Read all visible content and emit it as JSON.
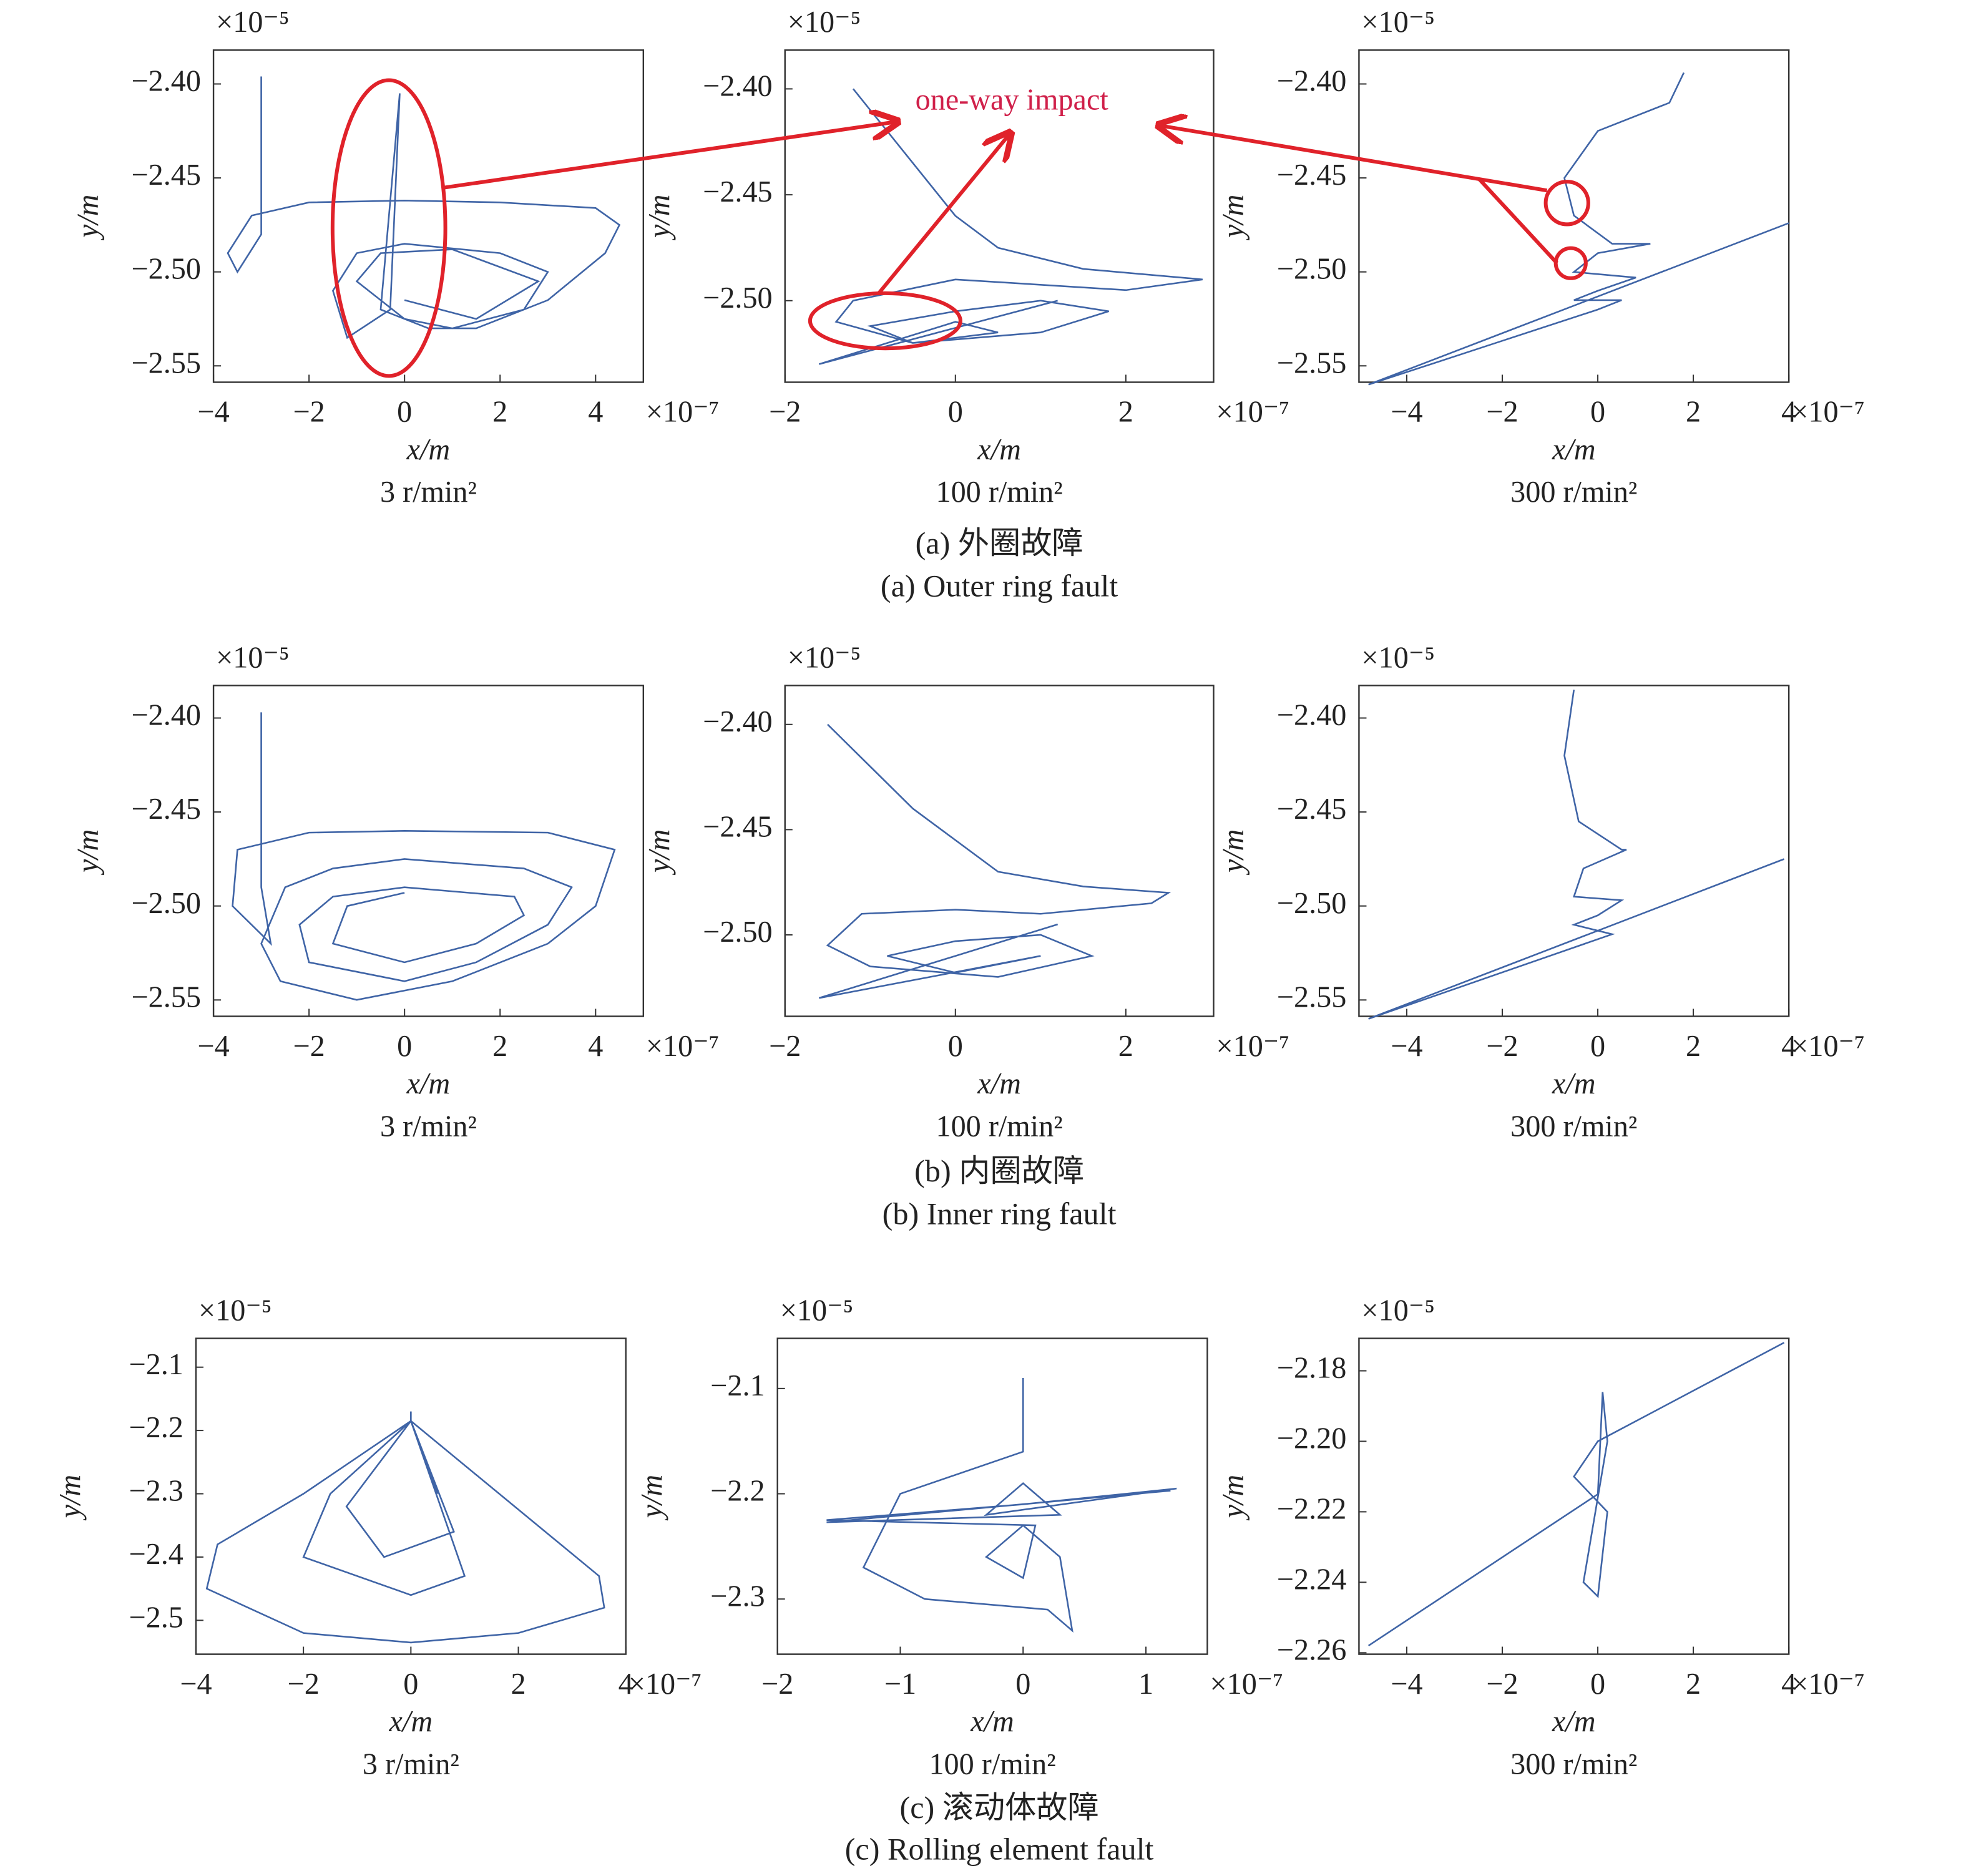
{
  "captions": [
    "(a) 外圈故障",
    "(a) Outer ring fault",
    "(b) 内圈故障",
    "(b) Inner ring fault",
    "(c) 滚动体故障",
    "(c) Rolling element fault"
  ],
  "chart_data": [
    {
      "type": "line",
      "subtitle": "3 r/min²",
      "xlabel": "x/m",
      "ylabel": "y/m",
      "x_exponent": "×10⁻⁷",
      "y_exponent": "×10⁻⁵",
      "color": "#3f64a6",
      "xlim": [
        -4,
        5
      ],
      "ylim": [
        -2.5587,
        -2.382
      ],
      "xticks": [
        {
          "value": -4,
          "label": "−4"
        },
        {
          "value": -2,
          "label": "−2"
        },
        0,
        2,
        4
      ],
      "yticks": [
        {
          "value": -2.4,
          "label": "−2.40"
        },
        {
          "value": -2.45,
          "label": "−2.45"
        },
        {
          "value": -2.5,
          "label": "−2.50"
        },
        {
          "value": -2.55,
          "label": "−2.55"
        }
      ],
      "x": [
        -3,
        -3,
        -3.5,
        -3.7,
        -3.2,
        -2,
        0,
        2,
        4,
        4.5,
        4.2,
        3,
        1.5,
        0.5,
        -0.5,
        -0.1,
        -0.3,
        -1.2,
        -1.5,
        -1,
        0,
        2,
        3,
        2.5,
        1,
        0,
        -1,
        -0.5,
        1,
        2.8,
        1.5,
        0
      ],
      "values": [
        -2.396,
        -2.48,
        -2.5,
        -2.49,
        -2.47,
        -2.463,
        -2.462,
        -2.463,
        -2.466,
        -2.475,
        -2.49,
        -2.515,
        -2.53,
        -2.53,
        -2.52,
        -2.405,
        -2.52,
        -2.535,
        -2.51,
        -2.49,
        -2.485,
        -2.49,
        -2.5,
        -2.52,
        -2.53,
        -2.525,
        -2.505,
        -2.49,
        -2.488,
        -2.505,
        -2.525,
        -2.515
      ]
    },
    {
      "type": "line",
      "subtitle": "100 r/min²",
      "xlabel": "x/m",
      "ylabel": "y/m",
      "x_exponent": "×10⁻⁷",
      "y_exponent": "×10⁻⁵",
      "color": "#3f64a6",
      "annotation": "one-way impact",
      "xlim": [
        -2,
        3.03
      ],
      "ylim": [
        -2.5385,
        -2.3817
      ],
      "xticks": [
        {
          "value": -2,
          "label": "−2"
        },
        0,
        2
      ],
      "yticks": [
        {
          "value": -2.4,
          "label": "−2.40"
        },
        {
          "value": -2.45,
          "label": "−2.45"
        },
        {
          "value": -2.5,
          "label": "−2.50"
        }
      ],
      "x": [
        -1.2,
        -0.8,
        0,
        0.5,
        1.5,
        2.9,
        2,
        0,
        -1.2,
        -1.4,
        -0.5,
        1,
        1.8,
        1,
        0,
        -1,
        -0.5,
        0.5,
        0,
        -1.6,
        1.2
      ],
      "values": [
        -2.4,
        -2.42,
        -2.46,
        -2.475,
        -2.485,
        -2.49,
        -2.495,
        -2.49,
        -2.5,
        -2.51,
        -2.52,
        -2.515,
        -2.505,
        -2.5,
        -2.505,
        -2.512,
        -2.52,
        -2.515,
        -2.51,
        -2.53,
        -2.5
      ]
    },
    {
      "type": "line",
      "subtitle": "300 r/min²",
      "xlabel": "x/m",
      "ylabel": "y/m",
      "x_exponent": "×10⁻⁷",
      "y_exponent": "×10⁻⁵",
      "color": "#3f64a6",
      "xlim": [
        -5,
        4
      ],
      "ylim": [
        -2.5587,
        -2.382
      ],
      "xticks": [
        {
          "value": -4,
          "label": "−4"
        },
        {
          "value": -2,
          "label": "−2"
        },
        0,
        2,
        4
      ],
      "yticks": [
        {
          "value": -2.4,
          "label": "−2.40"
        },
        {
          "value": -2.45,
          "label": "−2.45"
        },
        {
          "value": -2.5,
          "label": "−2.50"
        },
        {
          "value": -2.55,
          "label": "−2.55"
        }
      ],
      "x": [
        1.8,
        1.5,
        0,
        -0.7,
        -0.5,
        0.3,
        1.1,
        0,
        -0.5,
        0.8,
        0,
        -0.5,
        0.5,
        0,
        -4.8,
        4
      ],
      "values": [
        -2.394,
        -2.41,
        -2.425,
        -2.45,
        -2.47,
        -2.485,
        -2.485,
        -2.49,
        -2.5,
        -2.503,
        -2.51,
        -2.515,
        -2.515,
        -2.52,
        -2.56,
        -2.474
      ]
    },
    {
      "type": "line",
      "subtitle": "3 r/min²",
      "xlabel": "x/m",
      "ylabel": "y/m",
      "x_exponent": "×10⁻⁷",
      "y_exponent": "×10⁻⁵",
      "color": "#3f64a6",
      "xlim": [
        -4,
        5
      ],
      "ylim": [
        -2.5587,
        -2.3827
      ],
      "xticks": [
        {
          "value": -4,
          "label": "−4"
        },
        {
          "value": -2,
          "label": "−2"
        },
        0,
        2,
        4
      ],
      "yticks": [
        {
          "value": -2.4,
          "label": "−2.40"
        },
        {
          "value": -2.45,
          "label": "−2.45"
        },
        {
          "value": -2.5,
          "label": "−2.50"
        },
        {
          "value": -2.55,
          "label": "−2.55"
        }
      ],
      "x": [
        -3,
        -3,
        -2.8,
        -3.6,
        -3.5,
        -2,
        0,
        3,
        4.4,
        4,
        3,
        1,
        -1,
        -2.6,
        -3,
        -2.5,
        -1.5,
        0,
        2.5,
        3.5,
        3,
        1.5,
        0,
        -2,
        -2.2,
        -1.5,
        0,
        2.3,
        2.5,
        1.5,
        0,
        -1.5,
        -1.2,
        0
      ],
      "values": [
        -2.397,
        -2.49,
        -2.52,
        -2.5,
        -2.47,
        -2.461,
        -2.46,
        -2.461,
        -2.47,
        -2.5,
        -2.52,
        -2.54,
        -2.55,
        -2.54,
        -2.52,
        -2.49,
        -2.48,
        -2.475,
        -2.48,
        -2.49,
        -2.51,
        -2.53,
        -2.54,
        -2.53,
        -2.51,
        -2.495,
        -2.49,
        -2.495,
        -2.505,
        -2.52,
        -2.53,
        -2.52,
        -2.5,
        -2.493
      ]
    },
    {
      "type": "line",
      "subtitle": "100 r/min²",
      "xlabel": "x/m",
      "ylabel": "y/m",
      "x_exponent": "×10⁻⁷",
      "y_exponent": "×10⁻⁵",
      "color": "#3f64a6",
      "xlim": [
        -2,
        3.03
      ],
      "ylim": [
        -2.5387,
        -2.3815
      ],
      "xticks": [
        {
          "value": -2,
          "label": "−2"
        },
        0,
        2
      ],
      "yticks": [
        {
          "value": -2.4,
          "label": "−2.40"
        },
        {
          "value": -2.45,
          "label": "−2.45"
        },
        {
          "value": -2.5,
          "label": "−2.50"
        }
      ],
      "x": [
        -1.5,
        -0.5,
        0.5,
        1.5,
        2.5,
        2.3,
        1,
        0,
        -1.1,
        -1.5,
        -1,
        0.5,
        1.6,
        1,
        0,
        -0.8,
        0,
        1,
        -1.6,
        1.2
      ],
      "values": [
        -2.4,
        -2.44,
        -2.47,
        -2.477,
        -2.48,
        -2.485,
        -2.49,
        -2.488,
        -2.49,
        -2.505,
        -2.515,
        -2.52,
        -2.51,
        -2.5,
        -2.503,
        -2.51,
        -2.518,
        -2.51,
        -2.53,
        -2.495
      ]
    },
    {
      "type": "line",
      "subtitle": "300 r/min²",
      "xlabel": "x/m",
      "ylabel": "y/m",
      "x_exponent": "×10⁻⁷",
      "y_exponent": "×10⁻⁵",
      "color": "#3f64a6",
      "xlim": [
        -5,
        4
      ],
      "ylim": [
        -2.5587,
        -2.3827
      ],
      "xticks": [
        {
          "value": -4,
          "label": "−4"
        },
        {
          "value": -2,
          "label": "−2"
        },
        0,
        2,
        4
      ],
      "yticks": [
        {
          "value": -2.4,
          "label": "−2.40"
        },
        {
          "value": -2.45,
          "label": "−2.45"
        },
        {
          "value": -2.5,
          "label": "−2.50"
        },
        {
          "value": -2.55,
          "label": "−2.55"
        }
      ],
      "x": [
        -0.5,
        -0.7,
        -0.4,
        0.5,
        0.6,
        -0.3,
        -0.5,
        0.5,
        0,
        -0.5,
        0.3,
        -4.8,
        3.9
      ],
      "values": [
        -2.385,
        -2.42,
        -2.455,
        -2.47,
        -2.47,
        -2.48,
        -2.495,
        -2.497,
        -2.505,
        -2.51,
        -2.515,
        -2.56,
        -2.475
      ]
    },
    {
      "type": "line",
      "subtitle": "3 r/min²",
      "xlabel": "x/m",
      "ylabel": "y/m",
      "x_exponent": "×10⁻⁷",
      "y_exponent": "×10⁻⁵",
      "color": "#3f64a6",
      "xlim": [
        -4,
        4
      ],
      "ylim": [
        -2.5535,
        -2.0545
      ],
      "xticks": [
        {
          "value": -4,
          "label": "−4"
        },
        {
          "value": -2,
          "label": "−2"
        },
        0,
        2,
        4
      ],
      "yticks": [
        {
          "value": -2.1,
          "label": "−2.1"
        },
        {
          "value": -2.2,
          "label": "−2.2"
        },
        {
          "value": -2.3,
          "label": "−2.3"
        },
        {
          "value": -2.4,
          "label": "−2.4"
        },
        {
          "value": -2.5,
          "label": "−2.5"
        }
      ],
      "x": [
        0,
        0,
        3.5,
        3.6,
        2,
        0,
        -2,
        -3.8,
        -3.6,
        -2,
        0,
        1,
        0,
        -2,
        -1.5,
        0,
        0.8,
        -0.5,
        -1.2,
        0,
        0.5
      ],
      "values": [
        -2.17,
        -2.185,
        -2.43,
        -2.48,
        -2.52,
        -2.535,
        -2.52,
        -2.45,
        -2.38,
        -2.3,
        -2.185,
        -2.43,
        -2.46,
        -2.4,
        -2.3,
        -2.185,
        -2.36,
        -2.4,
        -2.32,
        -2.185,
        -2.3
      ]
    },
    {
      "type": "line",
      "subtitle": "100 r/min²",
      "xlabel": "x/m",
      "ylabel": "y/m",
      "x_exponent": "×10⁻⁷",
      "y_exponent": "×10⁻⁵",
      "color": "#3f64a6",
      "xlim": [
        -2,
        1.5
      ],
      "ylim": [
        -2.3524,
        -2.0524
      ],
      "xticks": [
        {
          "value": -2,
          "label": "−2"
        },
        {
          "value": -1,
          "label": "−1"
        },
        0,
        1
      ],
      "yticks": [
        {
          "value": -2.1,
          "label": "−2.1"
        },
        {
          "value": -2.2,
          "label": "−2.2"
        },
        {
          "value": -2.3,
          "label": "−2.3"
        }
      ],
      "x": [
        0,
        0,
        -1,
        -1.3,
        -0.8,
        0.2,
        0.4,
        0.3,
        0,
        -0.3,
        0,
        0.1,
        -1.6,
        0,
        1.25,
        -0.3,
        0,
        0.3,
        -1.6,
        1.2
      ],
      "values": [
        -2.09,
        -2.16,
        -2.2,
        -2.27,
        -2.3,
        -2.31,
        -2.33,
        -2.26,
        -2.23,
        -2.26,
        -2.28,
        -2.23,
        -2.225,
        -2.21,
        -2.195,
        -2.22,
        -2.19,
        -2.22,
        -2.227,
        -2.197
      ]
    },
    {
      "type": "line",
      "subtitle": "300 r/min²",
      "xlabel": "x/m",
      "ylabel": "y/m",
      "x_exponent": "×10⁻⁷",
      "y_exponent": "×10⁻⁵",
      "color": "#3f64a6",
      "xlim": [
        -5,
        4
      ],
      "ylim": [
        -2.2604,
        -2.1708
      ],
      "xticks": [
        {
          "value": -4,
          "label": "−4"
        },
        {
          "value": -2,
          "label": "−2"
        },
        0,
        2,
        4
      ],
      "yticks": [
        {
          "value": -2.18,
          "label": "−2.18"
        },
        {
          "value": -2.2,
          "label": "−2.20"
        },
        {
          "value": -2.22,
          "label": "−2.22"
        },
        {
          "value": -2.24,
          "label": "−2.24"
        },
        {
          "value": -2.26,
          "label": "−2.26"
        }
      ],
      "x": [
        -4.8,
        0,
        0.1,
        0.2,
        -0.3,
        0,
        0.2,
        -0.5,
        0,
        3.9
      ],
      "values": [
        -2.258,
        -2.215,
        -2.186,
        -2.2,
        -2.24,
        -2.244,
        -2.22,
        -2.21,
        -2.2,
        -2.172
      ]
    }
  ]
}
